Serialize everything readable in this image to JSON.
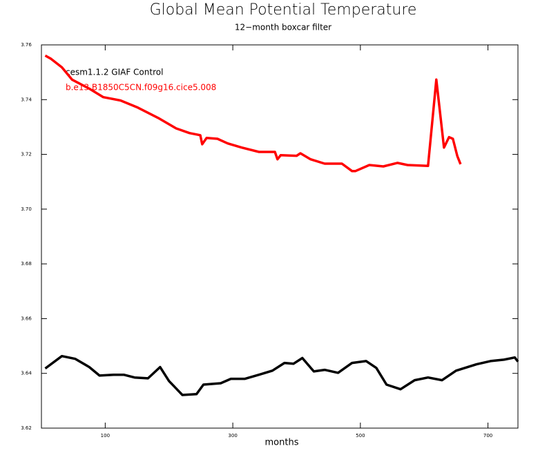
{
  "chart_data": {
    "type": "line",
    "title": "Global Mean Potential Temperature",
    "subtitle": "12−month boxcar filter",
    "xlabel": "months",
    "xlim": [
      0,
      747
    ],
    "ylim": [
      3.62,
      3.76
    ],
    "xticks": [
      100,
      300,
      500,
      700
    ],
    "yticks": [
      3.62,
      3.64,
      3.66,
      3.68,
      {
        "value": 3.7,
        "label": "3.70"
      },
      3.72,
      3.74,
      3.76
    ],
    "series": [
      {
        "name": "cesm1.1.2 GIAF Control",
        "color": "#000000",
        "x": [
          6,
          32,
          53,
          75,
          91,
          113,
          129,
          146,
          167,
          186,
          200,
          221,
          243,
          254,
          281,
          297,
          319,
          341,
          362,
          381,
          395,
          409,
          427,
          444,
          465,
          487,
          509,
          525,
          541,
          563,
          585,
          606,
          628,
          650,
          682,
          704,
          725,
          742,
          747
        ],
        "values": [
          3.6418,
          3.6463,
          3.6453,
          3.6423,
          3.6392,
          3.6395,
          3.6395,
          3.6385,
          3.6382,
          3.6423,
          3.6372,
          3.6321,
          3.6324,
          3.6359,
          3.6364,
          3.638,
          3.638,
          3.6395,
          3.641,
          3.6438,
          3.6435,
          3.6456,
          3.6407,
          3.6413,
          3.6402,
          3.6438,
          3.6445,
          3.642,
          3.6359,
          3.6342,
          3.6375,
          3.6385,
          3.6375,
          3.641,
          3.6433,
          3.6445,
          3.645,
          3.6458,
          3.6443
        ]
      },
      {
        "name": "b.e13.B1850C5CN.f09g16.cice5.008",
        "color": "#ff0000",
        "x": [
          6,
          15,
          32,
          48,
          75,
          97,
          124,
          151,
          183,
          211,
          232,
          249,
          252,
          259,
          276,
          292,
          314,
          341,
          366,
          370,
          375,
          400,
          406,
          422,
          444,
          471,
          487,
          492,
          514,
          536,
          558,
          574,
          606,
          619,
          631,
          639,
          645,
          652,
          657
        ],
        "values": [
          3.7561,
          3.7549,
          3.7518,
          3.7473,
          3.744,
          3.7409,
          3.7397,
          3.7371,
          3.7333,
          3.7295,
          3.7278,
          3.727,
          3.7237,
          3.726,
          3.7257,
          3.724,
          3.7225,
          3.7209,
          3.7209,
          3.7182,
          3.7197,
          3.7195,
          3.7204,
          3.7182,
          3.7166,
          3.7166,
          3.7139,
          3.7139,
          3.7161,
          3.7156,
          3.7169,
          3.7161,
          3.7158,
          3.7473,
          3.7225,
          3.7263,
          3.7257,
          3.7194,
          3.7164
        ]
      }
    ]
  }
}
